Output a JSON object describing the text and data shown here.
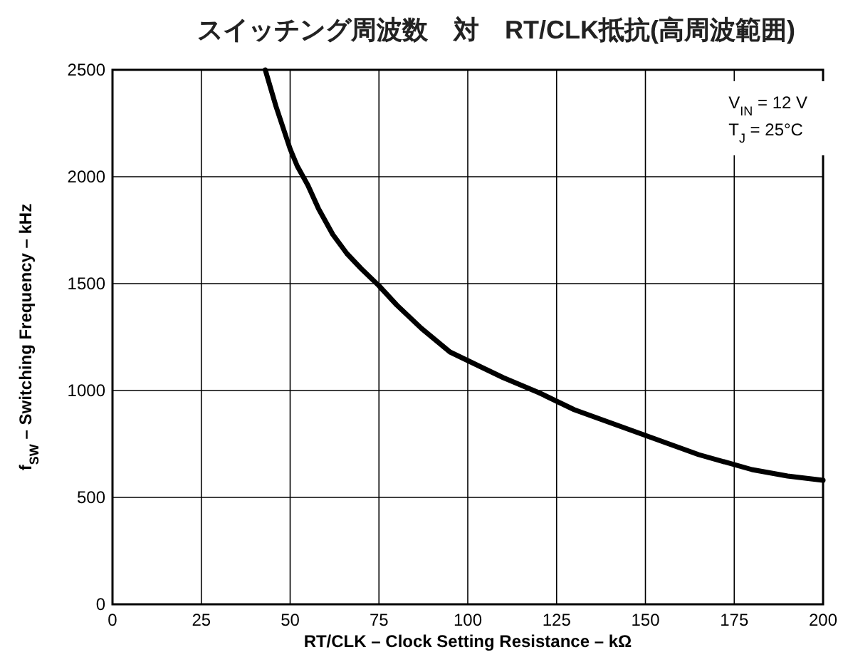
{
  "chart_data": {
    "type": "line",
    "title": "スイッチング周波数　対　RT/CLK抵抗(高周波範囲)",
    "xlabel": "RT/CLK – Clock Setting Resistance – kΩ",
    "ylabel": "f$_{SW}$ – Switching Frequency – kHz",
    "x": [
      43,
      46,
      50,
      52,
      55,
      58,
      62,
      66,
      70,
      75,
      80,
      87,
      95,
      100,
      110,
      120,
      130,
      140,
      150,
      165,
      180,
      190,
      200
    ],
    "series": [
      {
        "color": "#000000",
        "values": [
          2500,
          2330,
          2130,
          2050,
          1960,
          1850,
          1730,
          1640,
          1570,
          1490,
          1400,
          1290,
          1180,
          1140,
          1060,
          990,
          910,
          850,
          790,
          700,
          630,
          600,
          580
        ]
      }
    ],
    "xlim": [
      0,
      200
    ],
    "xticks": [
      0,
      25,
      50,
      75,
      100,
      125,
      150,
      175,
      200
    ],
    "ylim": [
      0,
      2500
    ],
    "yticks": [
      0,
      500,
      1000,
      1500,
      2000,
      2500
    ],
    "grid": true,
    "line_style": "solid",
    "marker": "none",
    "annotations": [
      "V$_{IN}$ = 12 V",
      "T$_{J}$ = 25°C"
    ]
  }
}
